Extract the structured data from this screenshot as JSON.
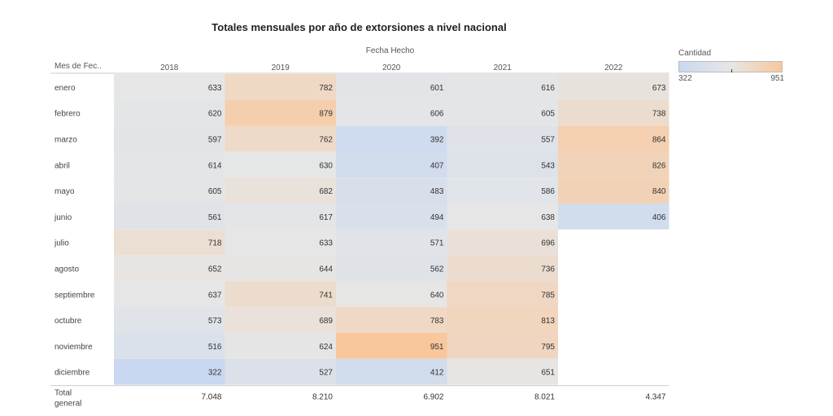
{
  "chart_data": {
    "type": "heatmap",
    "title": "Totales mensuales por año de extorsiones a nivel nacional",
    "column_group_label": "Fecha Hecho",
    "row_header_label": "Mes de Fec..",
    "columns": [
      "2018",
      "2019",
      "2020",
      "2021",
      "2022"
    ],
    "rows": [
      "enero",
      "febrero",
      "marzo",
      "abril",
      "mayo",
      "junio",
      "julio",
      "agosto",
      "septiembre",
      "octubre",
      "noviembre",
      "diciembre"
    ],
    "values": [
      [
        633,
        782,
        601,
        616,
        673
      ],
      [
        620,
        879,
        606,
        605,
        738
      ],
      [
        597,
        762,
        392,
        557,
        864
      ],
      [
        614,
        630,
        407,
        543,
        826
      ],
      [
        605,
        682,
        483,
        586,
        840
      ],
      [
        561,
        617,
        494,
        638,
        406
      ],
      [
        718,
        633,
        571,
        696,
        null
      ],
      [
        652,
        644,
        562,
        736,
        null
      ],
      [
        637,
        741,
        640,
        785,
        null
      ],
      [
        573,
        689,
        783,
        813,
        null
      ],
      [
        516,
        624,
        951,
        795,
        null
      ],
      [
        322,
        527,
        412,
        651,
        null
      ]
    ],
    "totals_label": "Total general",
    "totals": [
      "7.048",
      "8.210",
      "6.902",
      "8.021",
      "4.347"
    ],
    "legend": {
      "title": "Cantidad",
      "min": 322,
      "max": 951,
      "min_label": "322",
      "max_label": "951",
      "placement": "top-right"
    },
    "colors": {
      "low": "#c9d8f0",
      "mid": "#e6e6e6",
      "high": "#f9c79c",
      "text": "#333333"
    }
  }
}
